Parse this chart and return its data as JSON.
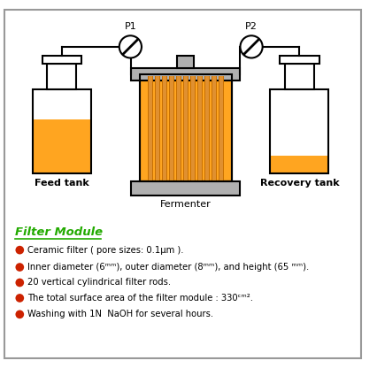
{
  "background_color": "#ffffff",
  "border_color": "#999999",
  "orange_liquid": "#FFA520",
  "orange_dark": "#C87000",
  "orange_rod": "#E09030",
  "gray_plate": "#B0B0B0",
  "gray_dark": "#808080",
  "black": "#000000",
  "green_title": "#22AA00",
  "red_bullet": "#CC2200",
  "feed_tank_label": "Feed tank",
  "recovery_tank_label": "Recovery tank",
  "fermenter_label": "Fermenter",
  "p1_label": "P1",
  "p2_label": "P2",
  "filter_module_title": "Filter Module",
  "bullets": [
    "Ceramic filter ( pore sizes: 0.1μm ).",
    "Inner diameter (6ᵐᵐ), outer diameter (8ᵐᵐ), and height (65 ᵐᵐ).",
    "20 vertical cylindrical filter rods.",
    "The total surface area of the filter module : 330ᶜᵐ².",
    "Washing with 1N  NaOH for several hours."
  ]
}
